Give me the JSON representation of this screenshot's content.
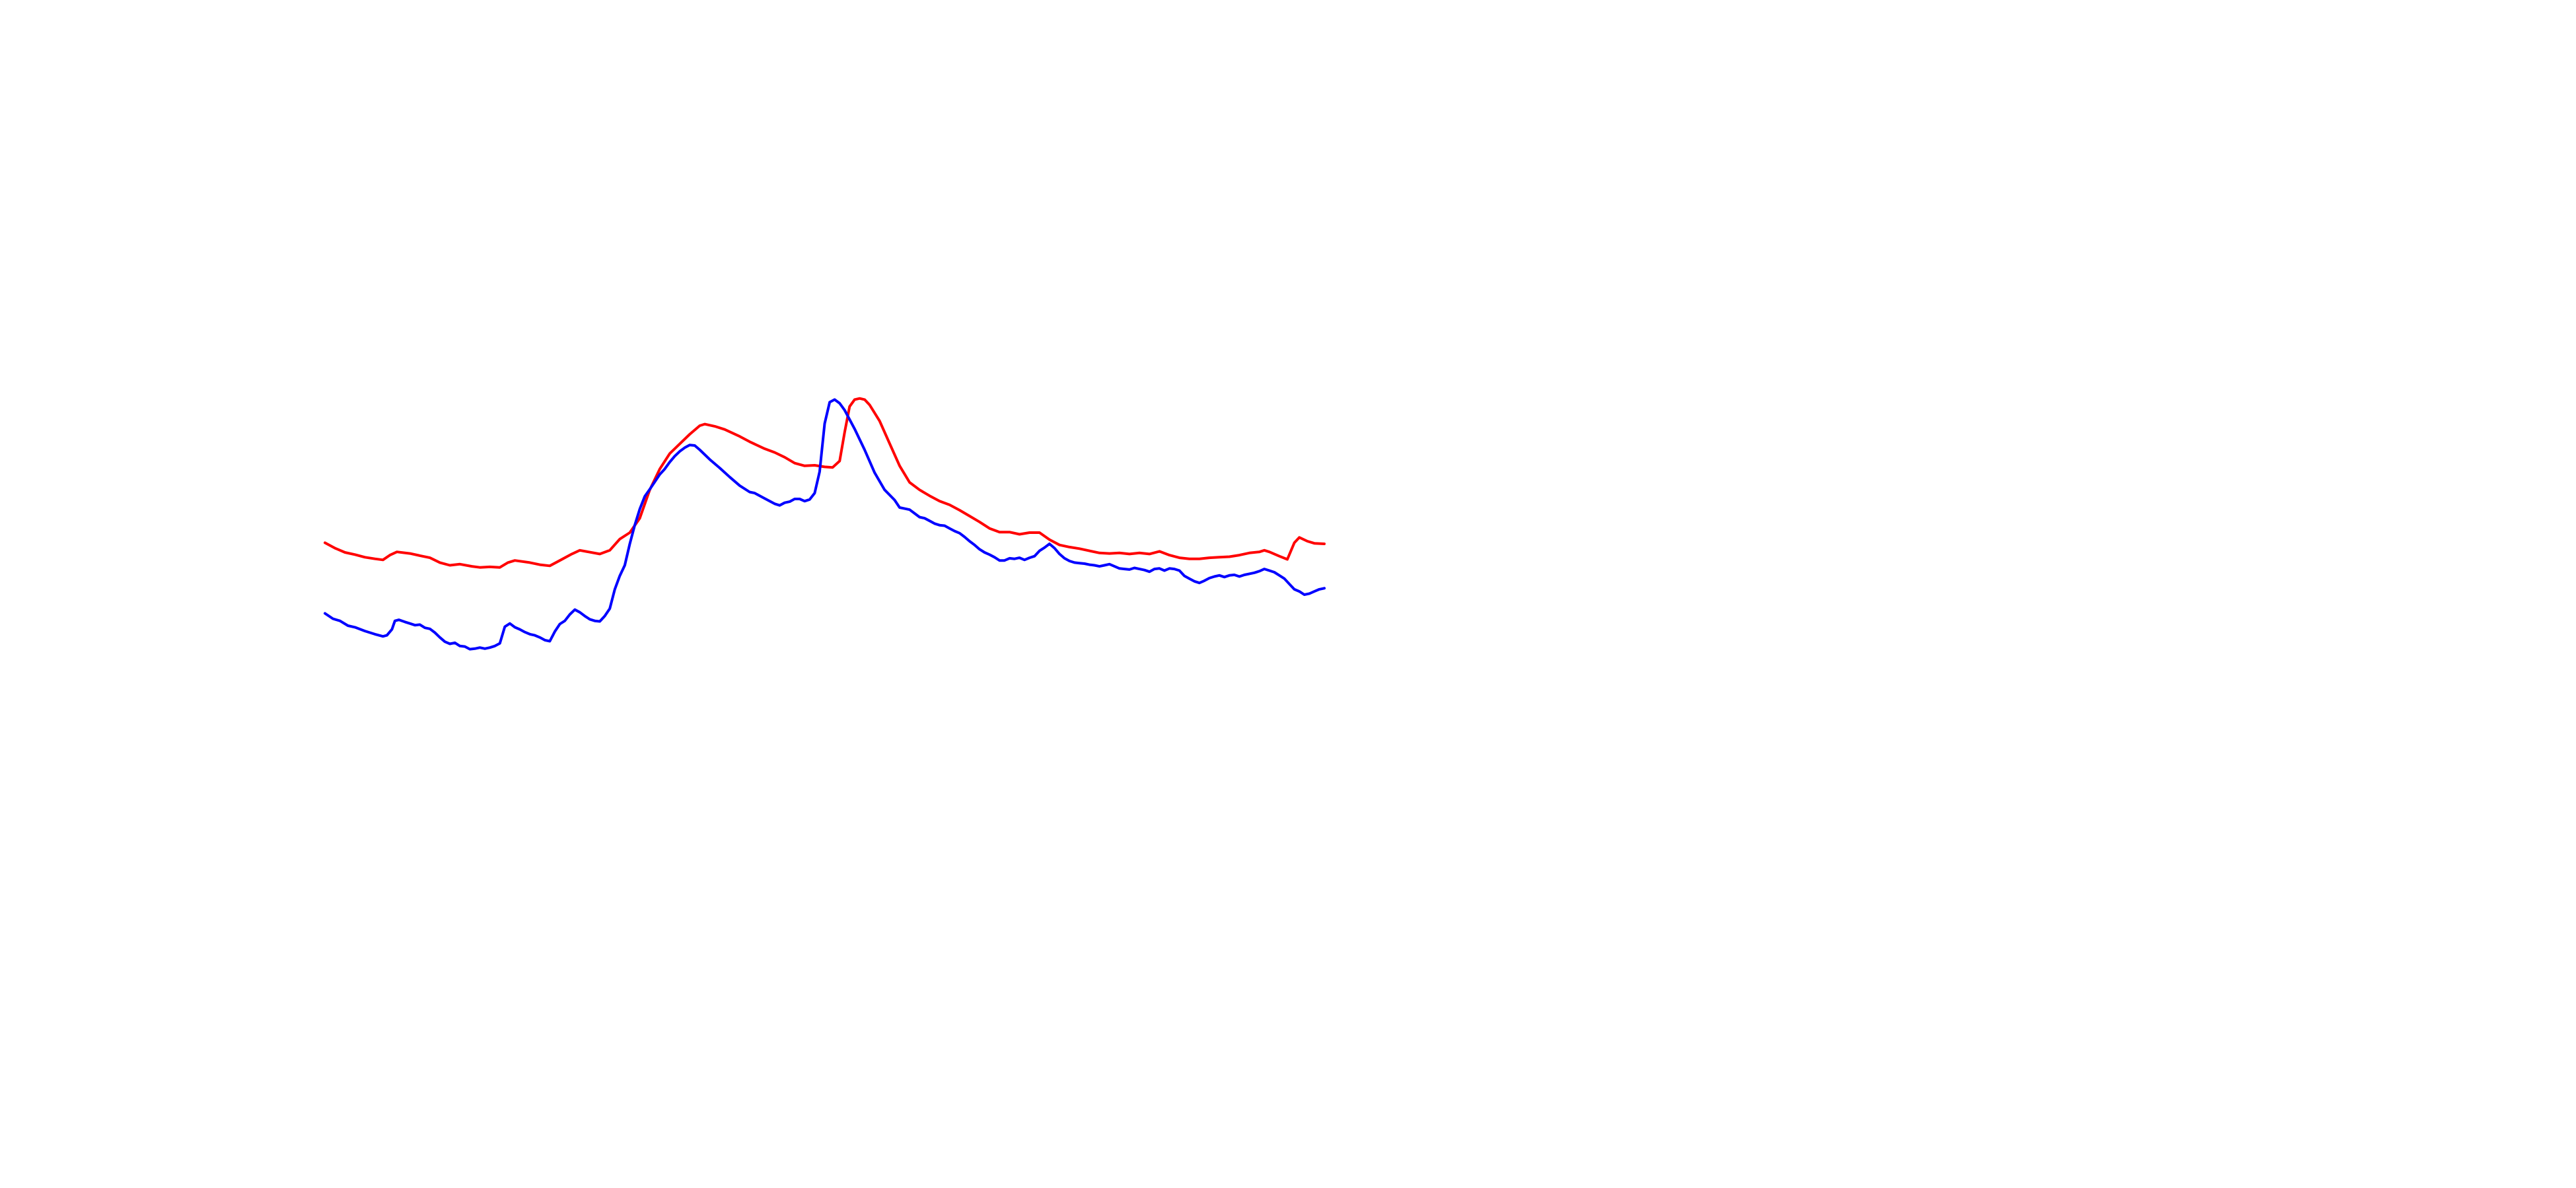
{
  "chart_data": {
    "type": "line",
    "title": "",
    "xlabel": "",
    "ylabel": "",
    "grid": false,
    "legend": "none",
    "axes_visible": false,
    "xlim": [
      0,
      100
    ],
    "ylim": [
      0,
      100
    ],
    "series": [
      {
        "color": "#ff0000",
        "points": [
          [
            0.0,
            49.7
          ],
          [
            1.0,
            48.7
          ],
          [
            2.0,
            47.9
          ],
          [
            3.0,
            47.5
          ],
          [
            4.0,
            47.0
          ],
          [
            5.0,
            46.7
          ],
          [
            5.8,
            46.5
          ],
          [
            6.5,
            47.4
          ],
          [
            7.2,
            48.0
          ],
          [
            8.5,
            47.7
          ],
          [
            9.5,
            47.3
          ],
          [
            10.5,
            46.9
          ],
          [
            11.5,
            46.0
          ],
          [
            12.5,
            45.5
          ],
          [
            13.5,
            45.7
          ],
          [
            14.7,
            45.3
          ],
          [
            15.5,
            45.1
          ],
          [
            16.5,
            45.2
          ],
          [
            17.5,
            45.1
          ],
          [
            18.3,
            46.0
          ],
          [
            19.0,
            46.4
          ],
          [
            20.5,
            46.0
          ],
          [
            21.5,
            45.6
          ],
          [
            22.5,
            45.4
          ],
          [
            23.5,
            46.4
          ],
          [
            24.7,
            47.6
          ],
          [
            25.5,
            48.3
          ],
          [
            27.5,
            47.6
          ],
          [
            28.5,
            48.3
          ],
          [
            29.5,
            50.4
          ],
          [
            30.5,
            51.6
          ],
          [
            31.5,
            54.3
          ],
          [
            32.5,
            59.6
          ],
          [
            33.5,
            63.5
          ],
          [
            34.5,
            66.4
          ],
          [
            35.5,
            68.2
          ],
          [
            36.5,
            70.0
          ],
          [
            37.5,
            71.6
          ],
          [
            38.0,
            71.9
          ],
          [
            39.0,
            71.5
          ],
          [
            40.0,
            70.9
          ],
          [
            41.5,
            69.6
          ],
          [
            42.5,
            68.6
          ],
          [
            44.0,
            67.3
          ],
          [
            45.0,
            66.6
          ],
          [
            46.0,
            65.7
          ],
          [
            47.0,
            64.6
          ],
          [
            48.0,
            64.1
          ],
          [
            49.0,
            64.2
          ],
          [
            50.0,
            63.9
          ],
          [
            50.8,
            63.8
          ],
          [
            51.5,
            65.0
          ],
          [
            52.0,
            70.4
          ],
          [
            52.5,
            75.2
          ],
          [
            53.0,
            76.5
          ],
          [
            53.5,
            76.7
          ],
          [
            54.0,
            76.5
          ],
          [
            54.5,
            75.5
          ],
          [
            55.5,
            72.5
          ],
          [
            56.5,
            68.3
          ],
          [
            57.5,
            64.1
          ],
          [
            58.5,
            61.0
          ],
          [
            59.5,
            59.6
          ],
          [
            60.5,
            58.5
          ],
          [
            61.5,
            57.5
          ],
          [
            62.5,
            56.8
          ],
          [
            63.5,
            55.8
          ],
          [
            64.5,
            54.7
          ],
          [
            65.5,
            53.6
          ],
          [
            66.5,
            52.4
          ],
          [
            67.5,
            51.7
          ],
          [
            68.5,
            51.7
          ],
          [
            69.5,
            51.3
          ],
          [
            70.5,
            51.6
          ],
          [
            71.5,
            51.6
          ],
          [
            72.5,
            50.3
          ],
          [
            73.5,
            49.3
          ],
          [
            74.5,
            48.9
          ],
          [
            75.5,
            48.6
          ],
          [
            76.5,
            48.2
          ],
          [
            77.5,
            47.8
          ],
          [
            78.5,
            47.7
          ],
          [
            79.5,
            47.8
          ],
          [
            80.5,
            47.6
          ],
          [
            81.5,
            47.8
          ],
          [
            82.5,
            47.6
          ],
          [
            83.5,
            48.1
          ],
          [
            84.5,
            47.4
          ],
          [
            85.5,
            46.9
          ],
          [
            86.5,
            46.7
          ],
          [
            87.5,
            46.7
          ],
          [
            88.5,
            46.9
          ],
          [
            89.5,
            47.0
          ],
          [
            90.5,
            47.1
          ],
          [
            91.5,
            47.4
          ],
          [
            92.5,
            47.8
          ],
          [
            93.5,
            48.0
          ],
          [
            94.0,
            48.3
          ],
          [
            94.5,
            48.0
          ],
          [
            95.5,
            47.2
          ],
          [
            96.3,
            46.6
          ],
          [
            97.0,
            49.7
          ],
          [
            97.5,
            50.7
          ],
          [
            98.3,
            50.0
          ],
          [
            99.0,
            49.6
          ],
          [
            100.0,
            49.5
          ]
        ]
      },
      {
        "color": "#0000ff",
        "points": [
          [
            0.0,
            36.5
          ],
          [
            0.8,
            35.5
          ],
          [
            1.5,
            35.1
          ],
          [
            2.3,
            34.2
          ],
          [
            3.0,
            33.9
          ],
          [
            4.0,
            33.2
          ],
          [
            5.0,
            32.6
          ],
          [
            5.8,
            32.2
          ],
          [
            6.2,
            32.4
          ],
          [
            6.7,
            33.5
          ],
          [
            7.0,
            35.1
          ],
          [
            7.4,
            35.3
          ],
          [
            8.0,
            34.9
          ],
          [
            8.5,
            34.6
          ],
          [
            9.0,
            34.3
          ],
          [
            9.5,
            34.4
          ],
          [
            10.0,
            33.8
          ],
          [
            10.5,
            33.6
          ],
          [
            11.0,
            32.9
          ],
          [
            11.5,
            32.0
          ],
          [
            12.0,
            31.2
          ],
          [
            12.5,
            30.8
          ],
          [
            13.0,
            31.0
          ],
          [
            13.5,
            30.4
          ],
          [
            14.0,
            30.3
          ],
          [
            14.5,
            29.8
          ],
          [
            15.0,
            29.9
          ],
          [
            15.5,
            30.1
          ],
          [
            16.0,
            29.9
          ],
          [
            16.5,
            30.1
          ],
          [
            17.0,
            30.4
          ],
          [
            17.5,
            30.9
          ],
          [
            18.0,
            34.0
          ],
          [
            18.5,
            34.6
          ],
          [
            19.0,
            33.9
          ],
          [
            19.5,
            33.5
          ],
          [
            20.0,
            33.0
          ],
          [
            20.5,
            32.6
          ],
          [
            21.0,
            32.4
          ],
          [
            21.5,
            32.0
          ],
          [
            22.0,
            31.5
          ],
          [
            22.5,
            31.3
          ],
          [
            23.0,
            33.1
          ],
          [
            23.5,
            34.5
          ],
          [
            24.0,
            35.1
          ],
          [
            24.5,
            36.3
          ],
          [
            25.0,
            37.2
          ],
          [
            25.5,
            36.7
          ],
          [
            26.0,
            36.0
          ],
          [
            26.5,
            35.4
          ],
          [
            27.0,
            35.1
          ],
          [
            27.5,
            35.0
          ],
          [
            28.0,
            36.0
          ],
          [
            28.5,
            37.4
          ],
          [
            29.0,
            41.0
          ],
          [
            29.5,
            43.5
          ],
          [
            30.0,
            45.5
          ],
          [
            30.5,
            49.5
          ],
          [
            31.0,
            53.0
          ],
          [
            31.5,
            56.0
          ],
          [
            32.0,
            58.4
          ],
          [
            32.5,
            59.7
          ],
          [
            33.0,
            61.1
          ],
          [
            33.5,
            62.5
          ],
          [
            34.0,
            63.5
          ],
          [
            34.5,
            64.8
          ],
          [
            35.0,
            65.9
          ],
          [
            35.5,
            66.8
          ],
          [
            36.0,
            67.5
          ],
          [
            36.5,
            68.0
          ],
          [
            37.0,
            67.9
          ],
          [
            37.5,
            67.1
          ],
          [
            38.5,
            65.3
          ],
          [
            39.5,
            63.7
          ],
          [
            40.5,
            62.0
          ],
          [
            41.5,
            60.4
          ],
          [
            42.5,
            59.2
          ],
          [
            43.0,
            59.0
          ],
          [
            44.0,
            58.0
          ],
          [
            45.0,
            57.0
          ],
          [
            45.5,
            56.7
          ],
          [
            46.0,
            57.2
          ],
          [
            46.5,
            57.4
          ],
          [
            47.0,
            57.9
          ],
          [
            47.5,
            57.9
          ],
          [
            48.0,
            57.5
          ],
          [
            48.5,
            57.8
          ],
          [
            49.0,
            59.0
          ],
          [
            49.5,
            63.0
          ],
          [
            50.0,
            72.0
          ],
          [
            50.5,
            76.0
          ],
          [
            51.0,
            76.5
          ],
          [
            51.5,
            75.8
          ],
          [
            52.0,
            74.5
          ],
          [
            53.0,
            71.0
          ],
          [
            54.0,
            67.1
          ],
          [
            55.0,
            62.8
          ],
          [
            56.0,
            59.6
          ],
          [
            57.0,
            57.7
          ],
          [
            57.5,
            56.3
          ],
          [
            58.0,
            56.1
          ],
          [
            58.5,
            55.9
          ],
          [
            59.0,
            55.2
          ],
          [
            59.5,
            54.5
          ],
          [
            60.0,
            54.3
          ],
          [
            60.5,
            53.8
          ],
          [
            61.0,
            53.3
          ],
          [
            61.5,
            53.0
          ],
          [
            62.0,
            52.9
          ],
          [
            62.5,
            52.4
          ],
          [
            63.0,
            51.9
          ],
          [
            63.5,
            51.5
          ],
          [
            64.0,
            50.8
          ],
          [
            64.5,
            50.0
          ],
          [
            65.0,
            49.3
          ],
          [
            65.5,
            48.5
          ],
          [
            66.0,
            47.9
          ],
          [
            66.5,
            47.5
          ],
          [
            67.0,
            47.0
          ],
          [
            67.5,
            46.4
          ],
          [
            68.0,
            46.4
          ],
          [
            68.5,
            46.8
          ],
          [
            69.0,
            46.7
          ],
          [
            69.5,
            46.9
          ],
          [
            70.0,
            46.5
          ],
          [
            70.5,
            46.9
          ],
          [
            71.0,
            47.2
          ],
          [
            71.5,
            48.2
          ],
          [
            72.0,
            48.8
          ],
          [
            72.5,
            49.5
          ],
          [
            73.0,
            48.7
          ],
          [
            73.5,
            47.6
          ],
          [
            74.0,
            46.8
          ],
          [
            74.5,
            46.3
          ],
          [
            75.0,
            46.0
          ],
          [
            75.5,
            45.9
          ],
          [
            76.0,
            45.8
          ],
          [
            76.5,
            45.6
          ],
          [
            77.0,
            45.5
          ],
          [
            77.5,
            45.3
          ],
          [
            78.0,
            45.5
          ],
          [
            78.5,
            45.7
          ],
          [
            79.0,
            45.3
          ],
          [
            79.5,
            44.9
          ],
          [
            80.0,
            44.8
          ],
          [
            80.5,
            44.7
          ],
          [
            81.0,
            45.0
          ],
          [
            81.5,
            44.8
          ],
          [
            82.0,
            44.6
          ],
          [
            82.5,
            44.3
          ],
          [
            83.0,
            44.8
          ],
          [
            83.5,
            44.9
          ],
          [
            84.0,
            44.5
          ],
          [
            84.5,
            44.9
          ],
          [
            85.0,
            44.8
          ],
          [
            85.5,
            44.5
          ],
          [
            86.0,
            43.5
          ],
          [
            86.5,
            43.0
          ],
          [
            87.0,
            42.5
          ],
          [
            87.5,
            42.2
          ],
          [
            88.0,
            42.6
          ],
          [
            88.5,
            43.1
          ],
          [
            89.0,
            43.4
          ],
          [
            89.5,
            43.6
          ],
          [
            90.0,
            43.3
          ],
          [
            90.5,
            43.6
          ],
          [
            91.0,
            43.7
          ],
          [
            91.5,
            43.4
          ],
          [
            92.0,
            43.7
          ],
          [
            92.5,
            43.9
          ],
          [
            93.0,
            44.1
          ],
          [
            93.5,
            44.4
          ],
          [
            94.0,
            44.8
          ],
          [
            94.5,
            44.5
          ],
          [
            95.0,
            44.2
          ],
          [
            95.5,
            43.6
          ],
          [
            96.0,
            43.0
          ],
          [
            96.5,
            42.0
          ],
          [
            97.0,
            41.0
          ],
          [
            97.5,
            40.6
          ],
          [
            98.0,
            40.0
          ],
          [
            98.5,
            40.2
          ],
          [
            99.0,
            40.6
          ],
          [
            99.5,
            41.0
          ],
          [
            100.0,
            41.2
          ]
        ]
      }
    ]
  }
}
